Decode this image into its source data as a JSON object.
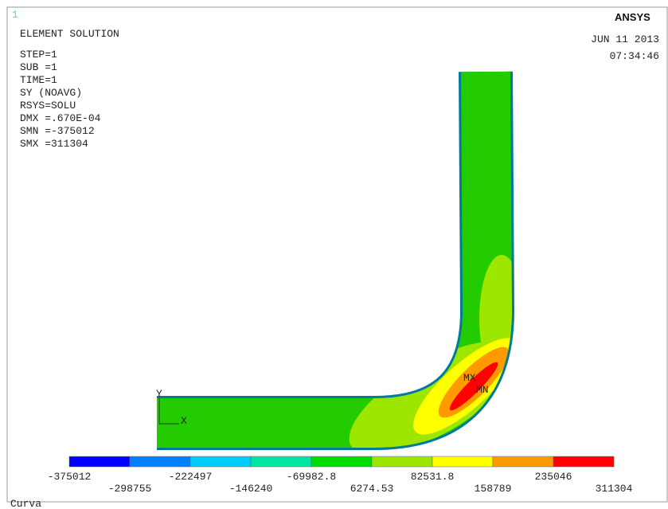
{
  "window": {
    "number": "1",
    "logo": "ANSYS",
    "date": "JUN 11 2013",
    "time": "07:34:46",
    "footer": "Curva"
  },
  "info": [
    "ELEMENT SOLUTION",
    "STEP=1",
    "SUB =1",
    "TIME=1",
    "SY       (NOAVG)",
    "RSYS=SOLU",
    "DMX =.670E-04",
    "SMN =-375012",
    "SMX =311304"
  ],
  "model": {
    "x_axis": "X",
    "y_axis": "Y",
    "max_marker": "MX",
    "min_marker": "MN"
  },
  "legend": {
    "labels": [
      "-375012",
      "-298755",
      "-222497",
      "-146240",
      "-69982.8",
      "6274.53",
      "82531.8",
      "158789",
      "235046",
      "311304"
    ],
    "colors": [
      "#0000ff",
      "#0080ff",
      "#00ccff",
      "#00e6a0",
      "#00dd00",
      "#9de600",
      "#ffff00",
      "#ff9900",
      "#ff0000"
    ]
  }
}
